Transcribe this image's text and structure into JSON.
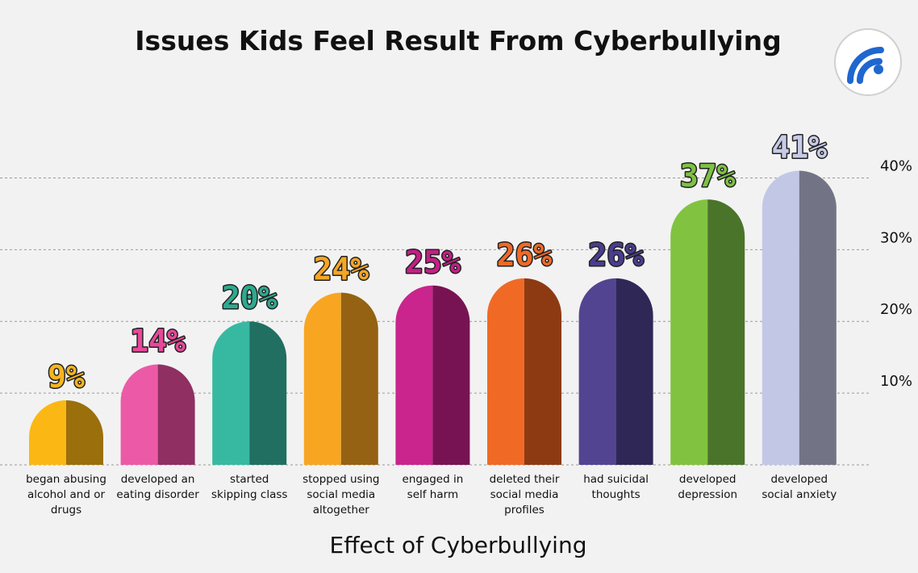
{
  "chart_data": {
    "type": "bar",
    "title": "Issues Kids Feel Result From Cyberbullying",
    "xlabel": "Effect of Cyberbullying",
    "ylabel": "",
    "ylim": [
      0,
      45
    ],
    "grid": true,
    "y_ticks": [
      {
        "value": 10,
        "label": "10%"
      },
      {
        "value": 20,
        "label": "20%"
      },
      {
        "value": 30,
        "label": "30%"
      },
      {
        "value": 40,
        "label": "40%"
      }
    ],
    "categories": [
      [
        "began abusing",
        "alcohol and or",
        "drugs"
      ],
      [
        "developed an",
        "eating disorder"
      ],
      [
        "started",
        "skipping class"
      ],
      [
        "stopped using",
        "social media",
        "altogether"
      ],
      [
        "engaged in",
        "self harm"
      ],
      [
        "deleted their",
        "social media",
        "profiles"
      ],
      [
        "had suicidal",
        "thoughts"
      ],
      [
        "developed",
        "depression"
      ],
      [
        "developed",
        "social anxiety"
      ]
    ],
    "values": [
      9,
      14,
      20,
      24,
      25,
      26,
      26,
      37,
      41
    ],
    "value_labels": [
      "9%",
      "14%",
      "20%",
      "24%",
      "25%",
      "26%",
      "26%",
      "37%",
      "41%"
    ],
    "colors": [
      {
        "light": "#fbb814",
        "dark": "#9a6f0c",
        "label": "#f5b520"
      },
      {
        "light": "#ec5aa7",
        "dark": "#8f2f62",
        "label": "#e8489a"
      },
      {
        "light": "#37b9a1",
        "dark": "#206f61",
        "label": "#2ea98f"
      },
      {
        "light": "#f8a622",
        "dark": "#946212",
        "label": "#f5a623"
      },
      {
        "light": "#c9258d",
        "dark": "#771353",
        "label": "#c41f86"
      },
      {
        "light": "#f06a26",
        "dark": "#8d3a13",
        "label": "#ee6a28"
      },
      {
        "light": "#534492",
        "dark": "#2f2756",
        "label": "#4a3d8f"
      },
      {
        "light": "#81c341",
        "dark": "#4a7429",
        "label": "#7dc243"
      },
      {
        "light": "#c3c7e6",
        "dark": "#727486",
        "label": "#c7cbe8"
      }
    ]
  }
}
